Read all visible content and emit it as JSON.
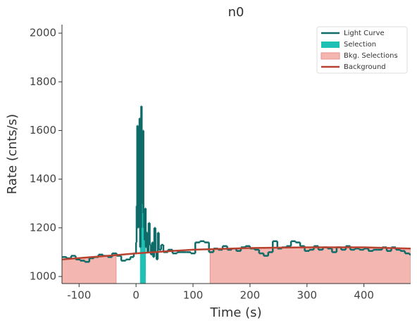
{
  "chart_data": {
    "type": "line",
    "title": "n0",
    "xlabel": "Time (s)",
    "ylabel": "Rate (cnts/s)",
    "xlim": [
      -130,
      482
    ],
    "ylim": [
      971,
      2035
    ],
    "xticks": [
      -100,
      0,
      100,
      200,
      300,
      400
    ],
    "yticks": [
      1000,
      1200,
      1400,
      1600,
      1800,
      2000
    ],
    "legend": "upper right",
    "series": [
      {
        "name": "Light Curve",
        "color": "#0e6b68",
        "step": true,
        "x": [
          -130,
          -122,
          -114,
          -106,
          -98,
          -90,
          -82,
          -74,
          -66,
          -58,
          -50,
          -42,
          -34,
          -26,
          -18,
          -10,
          -4,
          0,
          1,
          2,
          3,
          4,
          5,
          6,
          7,
          8,
          9,
          10,
          11,
          12,
          13,
          14,
          15,
          16,
          17,
          18,
          20,
          22,
          24,
          26,
          28,
          30,
          32,
          34,
          36,
          38,
          40,
          44,
          48,
          56,
          64,
          72,
          80,
          88,
          96,
          104,
          112,
          120,
          128,
          136,
          144,
          152,
          160,
          168,
          176,
          184,
          192,
          200,
          208,
          216,
          224,
          232,
          240,
          248,
          256,
          264,
          272,
          280,
          288,
          296,
          304,
          312,
          320,
          328,
          336,
          344,
          352,
          360,
          368,
          376,
          384,
          392,
          400,
          408,
          416,
          424,
          432,
          440,
          448,
          456,
          464,
          472,
          480
        ],
        "values": [
          1080,
          1075,
          1085,
          1070,
          1065,
          1060,
          1075,
          1080,
          1090,
          1085,
          1080,
          1095,
          1085,
          1065,
          1070,
          1080,
          1095,
          1140,
          1290,
          1620,
          1200,
          1600,
          1240,
          1650,
          1120,
          1200,
          1700,
          1560,
          1300,
          1600,
          1260,
          1200,
          1150,
          1280,
          1120,
          1180,
          1100,
          1220,
          1130,
          1090,
          1140,
          1080,
          1200,
          1100,
          1070,
          1180,
          1110,
          1130,
          1100,
          1110,
          1095,
          1100,
          1100,
          1100,
          1095,
          1140,
          1145,
          1140,
          1100,
          1115,
          1110,
          1125,
          1110,
          1115,
          1105,
          1120,
          1125,
          1115,
          1110,
          1095,
          1085,
          1100,
          1145,
          1115,
          1120,
          1125,
          1145,
          1140,
          1125,
          1105,
          1110,
          1125,
          1110,
          1120,
          1115,
          1100,
          1120,
          1110,
          1125,
          1110,
          1115,
          1110,
          1115,
          1105,
          1110,
          1110,
          1120,
          1105,
          1120,
          1110,
          1105,
          1095,
          1090
        ]
      },
      {
        "name": "Background",
        "color": "#b8412f",
        "x": [
          -130,
          -50,
          0,
          50,
          100,
          200,
          300,
          400,
          482
        ],
        "values": [
          1070,
          1085,
          1095,
          1103,
          1110,
          1117,
          1120,
          1120,
          1115
        ]
      }
    ],
    "selection": {
      "name": "Selection",
      "color": "#20c1b5",
      "range": [
        7,
        17
      ]
    },
    "bkg_selections": {
      "name": "Bkg. Selections",
      "color": "#f4b6b0",
      "ranges": [
        [
          -130,
          -35
        ],
        [
          130,
          482
        ]
      ]
    }
  }
}
